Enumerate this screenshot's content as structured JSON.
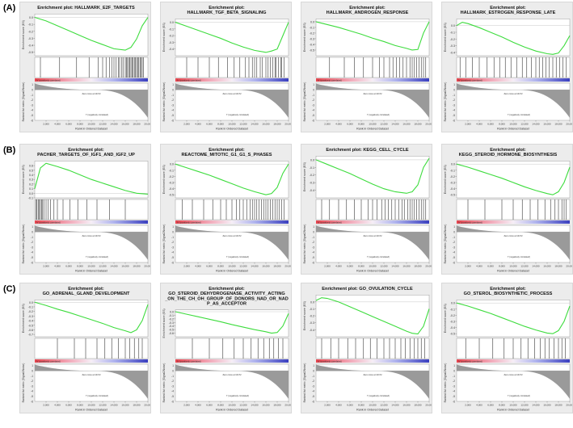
{
  "panel_labels": [
    "(A)",
    "(B)",
    "(C)"
  ],
  "common": {
    "ylabel_es": "Enrichment score (ES)",
    "ylabel_rank": "Ranked list metric (Signal2Noise)",
    "xlabel": "Rank in Ordered Dataset",
    "pos_label": "'h' (positively correlated)",
    "neg_label": "'l' (negatively correlated)",
    "zero_label": "Zero cross at 10172",
    "x_ticks": [
      "2,000",
      "4,000",
      "6,000",
      "8,000",
      "10,000",
      "12,000",
      "14,000",
      "16,000",
      "18,000",
      "20,000"
    ],
    "rank_ticks": [
      "1",
      "0",
      "-1",
      "-2",
      "-3",
      "-4",
      "-5",
      "-6"
    ],
    "colors": {
      "curve": "#3ddc3d",
      "pos": "#e8454f",
      "neg": "#3a3fbf"
    }
  },
  "chart_data": [
    {
      "type": "line",
      "title": "Enrichment plot: HALLMARK_E2F_TARGETS",
      "x": [
        0,
        0.1,
        0.2,
        0.3,
        0.4,
        0.5,
        0.6,
        0.7,
        0.8,
        0.85,
        0.9,
        0.95,
        1.0
      ],
      "y": [
        0,
        -0.05,
        -0.12,
        -0.19,
        -0.26,
        -0.33,
        -0.39,
        -0.45,
        -0.47,
        -0.43,
        -0.31,
        -0.12,
        0
      ],
      "ylim": [
        -0.55,
        0.05
      ],
      "y_ticks": [
        "0.0",
        "-0.1",
        "-0.2",
        "-0.3",
        "-0.4",
        "-0.5"
      ],
      "hits": [
        0.05,
        0.22,
        0.37,
        0.48,
        0.56,
        0.6,
        0.63,
        0.66,
        0.68,
        0.7,
        0.72,
        0.74,
        0.75,
        0.77,
        0.78,
        0.8,
        0.81,
        0.82,
        0.83,
        0.84,
        0.85,
        0.86,
        0.87,
        0.88,
        0.89,
        0.9,
        0.91,
        0.92,
        0.93,
        0.94,
        0.95,
        0.96
      ]
    },
    {
      "type": "line",
      "title": "Enrichment plot: HALLMARK_TGF_BETA_SIGNALING",
      "x": [
        0,
        0.1,
        0.2,
        0.3,
        0.4,
        0.5,
        0.6,
        0.7,
        0.8,
        0.85,
        0.9,
        0.95,
        1.0
      ],
      "y": [
        0,
        -0.06,
        -0.12,
        -0.18,
        -0.24,
        -0.31,
        -0.37,
        -0.42,
        -0.45,
        -0.43,
        -0.4,
        -0.2,
        0
      ],
      "ylim": [
        -0.5,
        0.05
      ],
      "y_ticks": [
        "0.0",
        "-0.1",
        "-0.2",
        "-0.3",
        "-0.4"
      ],
      "hits": [
        0.1,
        0.2,
        0.3,
        0.38,
        0.46,
        0.52,
        0.57,
        0.62,
        0.65,
        0.68,
        0.7,
        0.72,
        0.75,
        0.77,
        0.8,
        0.82,
        0.84,
        0.86,
        0.88,
        0.89,
        0.91,
        0.93,
        0.94,
        0.96
      ]
    },
    {
      "type": "line",
      "title": "Enrichment plot: HALLMARK_ANDROGEN_RESPONSE",
      "x": [
        0,
        0.1,
        0.2,
        0.3,
        0.4,
        0.5,
        0.6,
        0.7,
        0.8,
        0.85,
        0.9,
        0.95,
        1.0
      ],
      "y": [
        0,
        -0.05,
        -0.1,
        -0.16,
        -0.22,
        -0.29,
        -0.35,
        -0.42,
        -0.47,
        -0.5,
        -0.49,
        -0.2,
        0
      ],
      "ylim": [
        -0.6,
        0.05
      ],
      "y_ticks": [
        "0.0",
        "-0.1",
        "-0.2",
        "-0.3",
        "-0.4",
        "-0.5"
      ],
      "hits": [
        0.12,
        0.25,
        0.34,
        0.42,
        0.5,
        0.56,
        0.6,
        0.65,
        0.68,
        0.71,
        0.74,
        0.77,
        0.8,
        0.83,
        0.85,
        0.87,
        0.89,
        0.91,
        0.93,
        0.95,
        0.97
      ]
    },
    {
      "type": "line",
      "title": "Enrichment plot: HALLMARK_ESTROGEN_RESPONSE_LATE",
      "x": [
        0,
        0.05,
        0.1,
        0.2,
        0.3,
        0.4,
        0.5,
        0.6,
        0.7,
        0.8,
        0.85,
        0.9,
        0.95,
        1.0
      ],
      "y": [
        0.0,
        0.05,
        0.03,
        -0.03,
        -0.1,
        -0.17,
        -0.25,
        -0.32,
        -0.38,
        -0.42,
        -0.43,
        -0.41,
        -0.3,
        -0.15
      ],
      "ylim": [
        -0.45,
        0.1
      ],
      "y_ticks": [
        "0.0",
        "-0.1",
        "-0.2",
        "-0.3",
        "-0.4"
      ],
      "hits": [
        0.03,
        0.08,
        0.14,
        0.2,
        0.27,
        0.33,
        0.38,
        0.43,
        0.48,
        0.53,
        0.58,
        0.62,
        0.66,
        0.7,
        0.73,
        0.76,
        0.79,
        0.82,
        0.85,
        0.88,
        0.91,
        0.94,
        0.97
      ]
    },
    {
      "type": "line",
      "title": "Enrichment plot: PACHER_TARGETS_OF_IGF1_AND_IGF2_UP",
      "x": [
        0,
        0.05,
        0.1,
        0.2,
        0.3,
        0.4,
        0.5,
        0.6,
        0.7,
        0.8,
        0.9,
        1.0
      ],
      "y": [
        0.1,
        0.55,
        0.65,
        0.58,
        0.5,
        0.4,
        0.3,
        0.22,
        0.14,
        0.06,
        0.0,
        -0.02
      ],
      "ylim": [
        -0.1,
        0.7
      ],
      "y_ticks": [
        "0.6",
        "0.5",
        "0.4",
        "0.3",
        "0.2",
        "0.1",
        "0.0",
        "-0.1"
      ],
      "hits": [
        0.01,
        0.02,
        0.03,
        0.04,
        0.05,
        0.06,
        0.07,
        0.08,
        0.1,
        0.12,
        0.14,
        0.17,
        0.2,
        0.25,
        0.31,
        0.38,
        0.46,
        0.55,
        0.66,
        0.8
      ]
    },
    {
      "type": "line",
      "title": "Enrichment plot: REACTOME_MITOTIC_G1_G1_S_PHASES",
      "x": [
        0,
        0.1,
        0.2,
        0.3,
        0.4,
        0.5,
        0.6,
        0.7,
        0.8,
        0.85,
        0.9,
        0.95,
        1.0
      ],
      "y": [
        0,
        -0.06,
        -0.12,
        -0.18,
        -0.25,
        -0.32,
        -0.39,
        -0.45,
        -0.5,
        -0.48,
        -0.38,
        -0.15,
        0
      ],
      "ylim": [
        -0.55,
        0.05
      ],
      "y_ticks": [
        "0.0",
        "-0.1",
        "-0.2",
        "-0.3",
        "-0.4",
        "-0.5"
      ],
      "hits": [
        0.06,
        0.15,
        0.25,
        0.33,
        0.4,
        0.45,
        0.5,
        0.54,
        0.57,
        0.6,
        0.63,
        0.66,
        0.68,
        0.7,
        0.72,
        0.74,
        0.76,
        0.78,
        0.8,
        0.82,
        0.84,
        0.86,
        0.88,
        0.9,
        0.92,
        0.94,
        0.96
      ]
    },
    {
      "type": "line",
      "title": "Enrichment plot: KEGG_CELL_CYCLE",
      "x": [
        0,
        0.1,
        0.2,
        0.3,
        0.4,
        0.5,
        0.6,
        0.7,
        0.8,
        0.85,
        0.9,
        0.95,
        1.0
      ],
      "y": [
        0,
        -0.06,
        -0.12,
        -0.18,
        -0.25,
        -0.32,
        -0.38,
        -0.42,
        -0.44,
        -0.42,
        -0.33,
        -0.1,
        0.02
      ],
      "ylim": [
        -0.5,
        0.05
      ],
      "y_ticks": [
        "0.0",
        "-0.1",
        "-0.2",
        "-0.3",
        "-0.4"
      ],
      "hits": [
        0.05,
        0.12,
        0.2,
        0.27,
        0.34,
        0.4,
        0.46,
        0.5,
        0.54,
        0.58,
        0.61,
        0.64,
        0.67,
        0.7,
        0.73,
        0.76,
        0.78,
        0.81,
        0.83,
        0.85,
        0.87,
        0.89,
        0.91,
        0.93,
        0.95,
        0.97
      ]
    },
    {
      "type": "line",
      "title": "Enrichment plot: KEGG_STEROID_HORMONE_BIOSYNTHESIS",
      "x": [
        0,
        0.1,
        0.2,
        0.3,
        0.4,
        0.5,
        0.6,
        0.7,
        0.8,
        0.85,
        0.9,
        0.95,
        1.0
      ],
      "y": [
        0,
        -0.05,
        -0.11,
        -0.17,
        -0.23,
        -0.3,
        -0.37,
        -0.43,
        -0.48,
        -0.5,
        -0.45,
        -0.3,
        -0.05
      ],
      "ylim": [
        -0.55,
        0.05
      ],
      "y_ticks": [
        "0.0",
        "-0.1",
        "-0.2",
        "-0.3",
        "-0.4",
        "-0.5"
      ],
      "hits": [
        0.1,
        0.25,
        0.4,
        0.5,
        0.58,
        0.65,
        0.72,
        0.78,
        0.83,
        0.87,
        0.9,
        0.93,
        0.95,
        0.97
      ]
    },
    {
      "type": "line",
      "title": "Enrichment plot: GO_ADRENAL_GLAND_DEVELOPMENT",
      "x": [
        0,
        0.1,
        0.2,
        0.3,
        0.4,
        0.5,
        0.6,
        0.7,
        0.8,
        0.85,
        0.9,
        0.95,
        1.0
      ],
      "y": [
        0,
        -0.07,
        -0.15,
        -0.22,
        -0.3,
        -0.38,
        -0.46,
        -0.55,
        -0.62,
        -0.66,
        -0.6,
        -0.4,
        -0.05
      ],
      "ylim": [
        -0.75,
        0.05
      ],
      "y_ticks": [
        "0.0",
        "-0.1",
        "-0.2",
        "-0.3",
        "-0.4",
        "-0.5",
        "-0.6",
        "-0.7"
      ],
      "hits": [
        0.2,
        0.35,
        0.45,
        0.55,
        0.62,
        0.68,
        0.74,
        0.8,
        0.84,
        0.88,
        0.92,
        0.95
      ]
    },
    {
      "type": "line",
      "title": "Enrichment plot: GO_STEROID_DEHYDROGENASE_ACTIVITY_ACTING_ON_THE_CH_OH_GROUP_OF_DONORS_NAD_OR_NADP_AS_ACCEPTOR",
      "x": [
        0,
        0.1,
        0.2,
        0.3,
        0.4,
        0.5,
        0.6,
        0.7,
        0.8,
        0.85,
        0.9,
        0.95,
        1.0
      ],
      "y": [
        0,
        -0.07,
        -0.14,
        -0.21,
        -0.28,
        -0.36,
        -0.43,
        -0.5,
        -0.56,
        -0.6,
        -0.58,
        -0.4,
        -0.05
      ],
      "ylim": [
        -0.7,
        0.05
      ],
      "y_ticks": [
        "0.0",
        "-0.1",
        "-0.2",
        "-0.3",
        "-0.4",
        "-0.5",
        "-0.6"
      ],
      "hits": [
        0.15,
        0.3,
        0.42,
        0.52,
        0.6,
        0.67,
        0.73,
        0.78,
        0.83,
        0.87,
        0.91,
        0.95
      ]
    },
    {
      "type": "line",
      "title": "Enrichment plot: GO_OVULATION_CYCLE",
      "x": [
        0,
        0.05,
        0.1,
        0.2,
        0.3,
        0.4,
        0.5,
        0.6,
        0.7,
        0.8,
        0.85,
        0.9,
        0.95,
        1.0
      ],
      "y": [
        0.02,
        0.06,
        0.05,
        0.0,
        -0.07,
        -0.14,
        -0.21,
        -0.28,
        -0.35,
        -0.42,
        -0.45,
        -0.46,
        -0.35,
        -0.1
      ],
      "ylim": [
        -0.5,
        0.1
      ],
      "y_ticks": [
        "0.0",
        "-0.1",
        "-0.2",
        "-0.3",
        "-0.4"
      ],
      "hits": [
        0.05,
        0.13,
        0.2,
        0.28,
        0.35,
        0.42,
        0.48,
        0.54,
        0.6,
        0.65,
        0.7,
        0.75,
        0.79,
        0.83,
        0.87,
        0.9,
        0.93,
        0.96
      ]
    },
    {
      "type": "line",
      "title": "Enrichment plot: GO_STEROL_BIOSYNTHETIC_PROCESS",
      "x": [
        0,
        0.1,
        0.2,
        0.3,
        0.4,
        0.5,
        0.6,
        0.7,
        0.8,
        0.85,
        0.9,
        0.95,
        1.0
      ],
      "y": [
        0,
        -0.05,
        -0.11,
        -0.17,
        -0.24,
        -0.31,
        -0.38,
        -0.44,
        -0.49,
        -0.5,
        -0.45,
        -0.3,
        -0.05
      ],
      "ylim": [
        -0.55,
        0.05
      ],
      "y_ticks": [
        "0.0",
        "-0.1",
        "-0.2",
        "-0.3",
        "-0.4",
        "-0.5"
      ],
      "hits": [
        0.08,
        0.2,
        0.32,
        0.42,
        0.5,
        0.57,
        0.63,
        0.69,
        0.74,
        0.78,
        0.82,
        0.86,
        0.9,
        0.93,
        0.96
      ]
    }
  ]
}
